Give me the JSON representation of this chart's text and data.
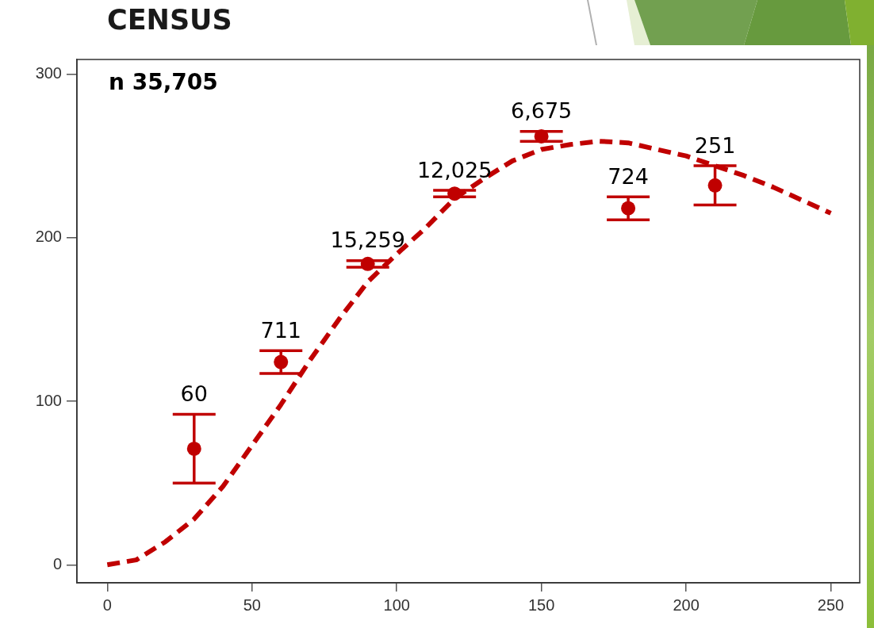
{
  "chart_data": {
    "type": "scatter",
    "title": "CENSUS",
    "annotations": [
      "n 35,705",
      {
        "text": "60",
        "x": 30,
        "y": 92
      },
      {
        "text": "711",
        "x": 60,
        "y": 131
      },
      {
        "text": "15,259",
        "x": 90,
        "y": 186
      },
      {
        "text": "12,025",
        "x": 120,
        "y": 229
      },
      {
        "text": "6,675",
        "x": 150,
        "y": 265
      },
      {
        "text": "724",
        "x": 180,
        "y": 225
      },
      {
        "text": "251",
        "x": 210,
        "y": 244
      }
    ],
    "xlim": [
      -10.5,
      260
    ],
    "xticks": [
      0,
      50,
      100,
      150,
      200,
      250
    ],
    "ylim": [
      -11,
      309
    ],
    "yticks": [
      0,
      100,
      200,
      300
    ],
    "marker": "circle",
    "series": [
      {
        "type": "scatter",
        "color": "#c00000",
        "x": [
          30,
          60,
          90,
          120,
          150,
          180,
          210
        ],
        "values": [
          71,
          124,
          184,
          227,
          262,
          218,
          232
        ],
        "errors": [
          21,
          7,
          2,
          2,
          3,
          7,
          12
        ]
      },
      {
        "type": "line",
        "color": "#c00000",
        "line_style": "dashed",
        "marker": "none",
        "x": [
          0,
          10,
          20,
          30,
          40,
          50,
          60,
          70,
          80,
          90,
          100,
          110,
          120,
          130,
          140,
          150,
          160,
          170,
          180,
          190,
          200,
          210,
          220,
          230,
          240,
          250
        ],
        "values": [
          0,
          3,
          14,
          28,
          48,
          73,
          98,
          125,
          150,
          173,
          190,
          206,
          224,
          236,
          247,
          254,
          257,
          259,
          258,
          254,
          250,
          244,
          238,
          231,
          223,
          215
        ]
      }
    ]
  }
}
